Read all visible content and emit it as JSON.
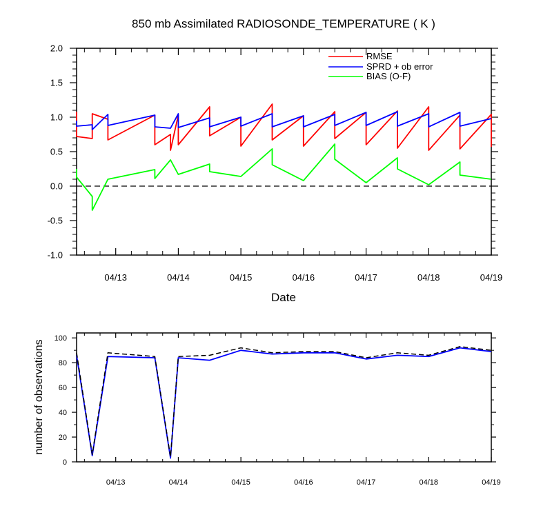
{
  "chart_data": [
    {
      "type": "line",
      "title": "850 mb Assimilated RADIOSONDE_TEMPERATURE ( K )",
      "xlabel": "Date",
      "ylabel": "",
      "x_tick_labels": [
        "04/13",
        "04/14",
        "04/15",
        "04/16",
        "04/17",
        "04/18",
        "04/19"
      ],
      "y_tick_labels": [
        "-1.0",
        "-0.5",
        "0.0",
        "0.5",
        "1.0",
        "1.5",
        "2.0"
      ],
      "xlim": [
        "2011-04-12 09:00",
        "2011-04-19 00:00"
      ],
      "ylim": [
        -1.0,
        2.0
      ],
      "legend_position": "top-right",
      "grid": false,
      "zero_line": "dashed",
      "series": [
        {
          "name": "RMSE",
          "color": "#ff0000",
          "x": [
            "04/12 09:00",
            "04/12 09:00",
            "04/12 15:00",
            "04/12 15:00",
            "04/12 21:00",
            "04/12 21:00",
            "04/13 15:00",
            "04/13 15:00",
            "04/13 21:00",
            "04/13 21:00",
            "04/14 00:00",
            "04/14 00:00",
            "04/14 12:00",
            "04/14 12:00",
            "04/15 00:00",
            "04/15 00:00",
            "04/15 12:00",
            "04/15 12:00",
            "04/16 00:00",
            "04/16 00:00",
            "04/16 12:00",
            "04/16 12:00",
            "04/17 00:00",
            "04/17 00:00",
            "04/17 12:00",
            "04/17 12:00",
            "04/18 00:00",
            "04/18 00:00",
            "04/18 12:00",
            "04/18 12:00",
            "04/19 00:00",
            "04/19 00:00"
          ],
          "y": [
            1.08,
            0.72,
            0.69,
            1.05,
            0.97,
            0.67,
            1.03,
            0.6,
            0.75,
            0.52,
            1.03,
            0.6,
            1.15,
            0.73,
            1.0,
            0.58,
            1.19,
            0.67,
            1.02,
            0.58,
            1.08,
            0.69,
            1.07,
            0.6,
            1.09,
            0.55,
            1.15,
            0.52,
            1.03,
            0.54,
            1.04,
            0.57
          ]
        },
        {
          "name": "SPRD + ob error",
          "color": "#0000ff",
          "x": [
            "04/12 09:00",
            "04/12 09:00",
            "04/12 15:00",
            "04/12 15:00",
            "04/12 21:00",
            "04/12 21:00",
            "04/13 15:00",
            "04/13 15:00",
            "04/13 21:00",
            "04/13 21:00",
            "04/14 00:00",
            "04/14 00:00",
            "04/14 12:00",
            "04/14 12:00",
            "04/15 00:00",
            "04/15 00:00",
            "04/15 12:00",
            "04/15 12:00",
            "04/16 00:00",
            "04/16 00:00",
            "04/16 12:00",
            "04/16 12:00",
            "04/17 00:00",
            "04/17 00:00",
            "04/17 12:00",
            "04/17 12:00",
            "04/18 00:00",
            "04/18 00:00",
            "04/18 12:00",
            "04/18 12:00",
            "04/19 00:00"
          ],
          "y": [
            0.95,
            0.87,
            0.89,
            0.82,
            1.04,
            0.88,
            1.03,
            0.86,
            0.84,
            0.84,
            1.05,
            0.85,
            0.99,
            0.86,
            1.0,
            0.87,
            1.05,
            0.86,
            1.02,
            0.86,
            1.04,
            0.88,
            1.07,
            0.88,
            1.08,
            0.87,
            1.05,
            0.86,
            1.07,
            0.87,
            0.98
          ]
        },
        {
          "name": "BIAS (O-F)",
          "color": "#00ff00",
          "x": [
            "04/12 09:00",
            "04/12 09:00",
            "04/12 15:00",
            "04/12 15:00",
            "04/12 21:00",
            "04/13 15:00",
            "04/13 15:00",
            "04/13 21:00",
            "04/14 00:00",
            "04/14 12:00",
            "04/14 12:00",
            "04/15 00:00",
            "04/15 12:00",
            "04/15 12:00",
            "04/16 00:00",
            "04/16 12:00",
            "04/16 12:00",
            "04/17 00:00",
            "04/17 12:00",
            "04/17 12:00",
            "04/18 00:00",
            "04/18 12:00",
            "04/18 12:00",
            "04/19 00:00"
          ],
          "y": [
            0.25,
            0.13,
            -0.15,
            -0.35,
            0.1,
            0.24,
            0.11,
            0.38,
            0.17,
            0.32,
            0.21,
            0.14,
            0.54,
            0.31,
            0.08,
            0.61,
            0.39,
            0.05,
            0.41,
            0.25,
            0.02,
            0.35,
            0.16,
            0.1
          ]
        }
      ]
    },
    {
      "type": "line",
      "title": "",
      "xlabel": "",
      "ylabel": "number of observations",
      "x_tick_labels": [
        "04/13",
        "04/14",
        "04/15",
        "04/16",
        "04/17",
        "04/18",
        "04/19"
      ],
      "y_tick_labels": [
        "0",
        "20",
        "40",
        "60",
        "80",
        "100"
      ],
      "xlim": [
        "2011-04-12 09:00",
        "2011-04-19 00:00"
      ],
      "ylim": [
        0,
        104
      ],
      "grid": false,
      "series": [
        {
          "color": "#0000ff",
          "style": "solid",
          "x": [
            "04/12 09:00",
            "04/12 15:00",
            "04/12 21:00",
            "04/13 15:00",
            "04/13 21:00",
            "04/14 00:00",
            "04/14 12:00",
            "04/15 00:00",
            "04/15 12:00",
            "04/16 00:00",
            "04/16 12:00",
            "04/17 00:00",
            "04/17 12:00",
            "04/18 00:00",
            "04/18 12:00",
            "04/19 00:00"
          ],
          "y": [
            86,
            5,
            85,
            84,
            3,
            84,
            82,
            90,
            87,
            88,
            88,
            83,
            86,
            85,
            92,
            89
          ]
        },
        {
          "color": "#000000",
          "style": "dashed",
          "x": [
            "04/12 09:00",
            "04/12 15:00",
            "04/12 21:00",
            "04/13 15:00",
            "04/13 21:00",
            "04/14 00:00",
            "04/14 12:00",
            "04/15 00:00",
            "04/15 12:00",
            "04/16 00:00",
            "04/16 12:00",
            "04/17 00:00",
            "04/17 12:00",
            "04/18 00:00",
            "04/18 12:00",
            "04/19 00:00"
          ],
          "y": [
            88,
            6,
            88,
            85,
            4,
            85,
            86,
            92,
            88,
            89,
            89,
            84,
            88,
            86,
            93,
            90
          ]
        }
      ]
    }
  ]
}
